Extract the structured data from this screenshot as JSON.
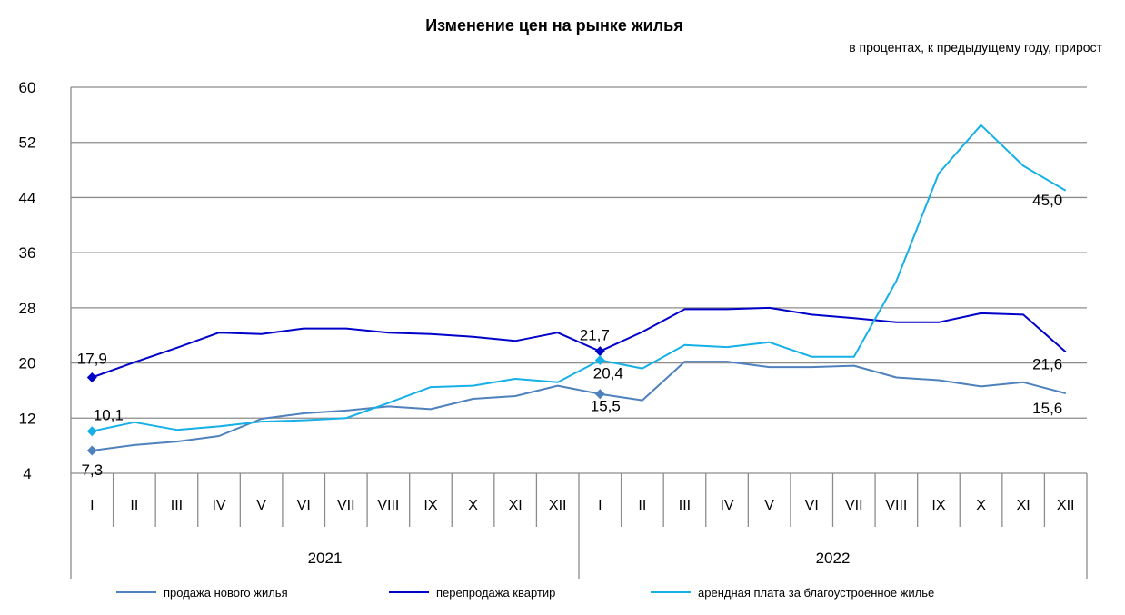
{
  "chart_data": {
    "type": "line",
    "title": "Изменение цен на рынке жилья",
    "subtitle": "в процентах,  к предыдущему году, прирост",
    "ylim": [
      4,
      60
    ],
    "yticks": [
      "4",
      "12",
      "20",
      "28",
      "36",
      "44",
      "52",
      "60"
    ],
    "grid": true,
    "legend_position": "bottom",
    "categories": [
      "I",
      "II",
      "III",
      "IV",
      "V",
      "VI",
      "VII",
      "VIII",
      "IX",
      "X",
      "XI",
      "XII",
      "I",
      "II",
      "III",
      "IV",
      "V",
      "VI",
      "VII",
      "VIII",
      "IX",
      "X",
      "XI",
      "XII"
    ],
    "years": [
      "2021",
      "2022"
    ],
    "series": [
      {
        "name": "продажа нового  жилья",
        "color": "#4f81bd",
        "values": [
          7.3,
          8.1,
          8.6,
          9.4,
          11.9,
          12.7,
          13.1,
          13.7,
          13.3,
          14.8,
          15.2,
          16.7,
          15.5,
          14.6,
          20.2,
          20.2,
          19.4,
          19.4,
          19.6,
          17.9,
          17.5,
          16.6,
          17.2,
          15.6
        ]
      },
      {
        "name": "перепродажа квартир",
        "color": "#0000c8",
        "values": [
          17.9,
          20.1,
          22.2,
          24.4,
          24.2,
          25.0,
          25.0,
          24.4,
          24.2,
          23.8,
          23.2,
          24.4,
          21.7,
          24.5,
          27.8,
          27.8,
          28.0,
          27.0,
          26.5,
          25.9,
          25.9,
          27.2,
          27.0,
          21.6
        ]
      },
      {
        "name": "арендная плата за благоустроенное   жилье",
        "color": "#16b0e6",
        "values": [
          10.1,
          11.4,
          10.3,
          10.8,
          11.5,
          11.7,
          12.0,
          14.2,
          16.5,
          16.7,
          17.7,
          17.2,
          20.4,
          19.2,
          22.6,
          22.3,
          23.0,
          20.9,
          20.9,
          31.9,
          47.5,
          54.5,
          48.6,
          45.0
        ]
      }
    ],
    "data_labels": [
      {
        "series": 0,
        "index": 0,
        "text": "7,3"
      },
      {
        "series": 0,
        "index": 12,
        "text": "15,5"
      },
      {
        "series": 0,
        "index": 23,
        "text": "15,6"
      },
      {
        "series": 1,
        "index": 0,
        "text": "17,9"
      },
      {
        "series": 1,
        "index": 12,
        "text": "21,7"
      },
      {
        "series": 1,
        "index": 23,
        "text": "21,6"
      },
      {
        "series": 2,
        "index": 0,
        "text": "10,1"
      },
      {
        "series": 2,
        "index": 12,
        "text": "20,4"
      },
      {
        "series": 2,
        "index": 23,
        "text": "45,0"
      }
    ],
    "markers": [
      {
        "series": 0,
        "index": 0
      },
      {
        "series": 0,
        "index": 12
      },
      {
        "series": 1,
        "index": 0
      },
      {
        "series": 1,
        "index": 12
      },
      {
        "series": 2,
        "index": 0
      },
      {
        "series": 2,
        "index": 12
      }
    ]
  }
}
